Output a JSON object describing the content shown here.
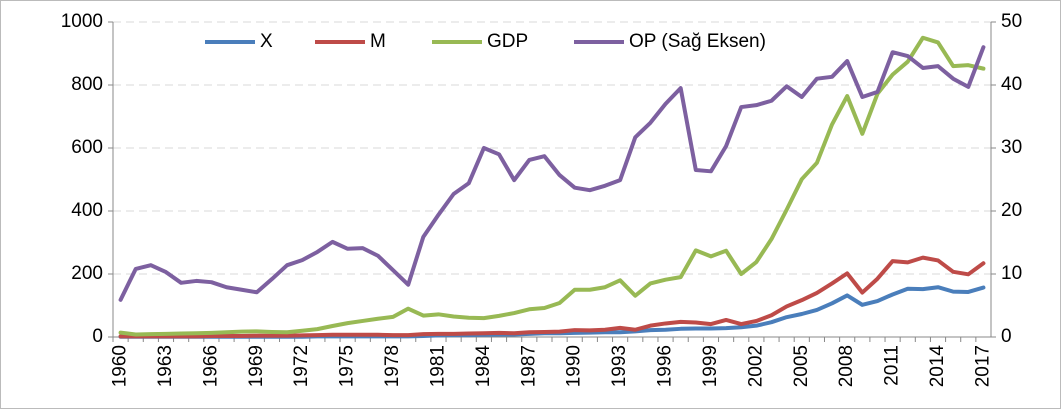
{
  "chart_data": {
    "type": "line",
    "categories": [
      "1960",
      null,
      null,
      "1963",
      null,
      null,
      "1966",
      null,
      null,
      "1969",
      null,
      null,
      "1972",
      null,
      null,
      "1975",
      null,
      null,
      "1978",
      null,
      null,
      "1981",
      null,
      null,
      "1984",
      null,
      null,
      "1987",
      null,
      null,
      "1990",
      null,
      null,
      "1993",
      null,
      null,
      "1996",
      null,
      null,
      "1999",
      null,
      null,
      "2002",
      null,
      null,
      "2005",
      null,
      null,
      "2008",
      null,
      null,
      "2011",
      null,
      null,
      "2014",
      null,
      null,
      "2017"
    ],
    "series": [
      {
        "name": "X",
        "color": "#4a7ebb",
        "values": [
          1,
          1,
          1,
          1,
          1,
          1,
          1,
          1,
          1,
          1,
          1,
          1,
          1,
          2,
          2,
          2,
          2,
          2,
          2,
          2,
          3,
          5,
          6,
          6,
          7,
          8,
          8,
          10,
          12,
          12,
          13,
          14,
          15,
          15,
          18,
          22,
          23,
          26,
          27,
          27,
          28,
          31,
          36,
          47,
          63,
          73,
          86,
          107,
          132,
          102,
          114,
          135,
          153,
          152,
          158,
          144,
          143,
          157
        ]
      },
      {
        "name": "M",
        "color": "#be4b48",
        "values": [
          2,
          2,
          2,
          2,
          2,
          2,
          3,
          3,
          3,
          4,
          4,
          4,
          5,
          6,
          7,
          7,
          7,
          7,
          6,
          6,
          9,
          10,
          10,
          11,
          12,
          13,
          12,
          15,
          16,
          17,
          22,
          21,
          23,
          29,
          23,
          36,
          43,
          48,
          46,
          41,
          54,
          41,
          51,
          69,
          97,
          117,
          140,
          170,
          202,
          141,
          185,
          241,
          237,
          252,
          243,
          207,
          199,
          234
        ]
      },
      {
        "name": "GDP",
        "color": "#98b954",
        "values": [
          14,
          8,
          9,
          10,
          11,
          12,
          13,
          15,
          17,
          18,
          16,
          15,
          20,
          25,
          35,
          44,
          51,
          58,
          64,
          90,
          68,
          72,
          65,
          61,
          60,
          67,
          76,
          88,
          92,
          108,
          150,
          150,
          158,
          180,
          131,
          170,
          182,
          190,
          275,
          256,
          274,
          200,
          238,
          311,
          404,
          501,
          553,
          675,
          765,
          645,
          772,
          833,
          874,
          950,
          935,
          860,
          863,
          852
        ]
      },
      {
        "name": "OP (Sağ Eksen)",
        "color": "#7d60a0",
        "axis": "y2",
        "values": [
          5.9,
          10.8,
          11.4,
          10.3,
          8.6,
          8.9,
          8.7,
          7.9,
          7.5,
          7.1,
          9.2,
          11.4,
          12.2,
          13.5,
          15.1,
          14.0,
          14.1,
          12.9,
          10.6,
          8.3,
          15.9,
          19.4,
          22.7,
          24.4,
          30.0,
          29.0,
          24.9,
          28.1,
          28.7,
          25.7,
          23.7,
          23.3,
          24.0,
          24.9,
          31.7,
          34.0,
          37.0,
          39.5,
          26.5,
          26.3,
          30.3,
          36.5,
          36.8,
          37.5,
          39.8,
          38.1,
          41.0,
          41.3,
          43.8,
          38.1,
          38.9,
          45.2,
          44.6,
          42.7,
          43.0,
          41.0,
          39.7,
          46.0
        ]
      }
    ],
    "ylim": [
      0,
      1000
    ],
    "yticks": [
      0,
      200,
      400,
      600,
      800,
      1000
    ],
    "y2lim": [
      0,
      50
    ],
    "y2ticks": [
      0,
      10,
      20,
      30,
      40,
      50
    ],
    "grid": true,
    "legend": "top"
  }
}
